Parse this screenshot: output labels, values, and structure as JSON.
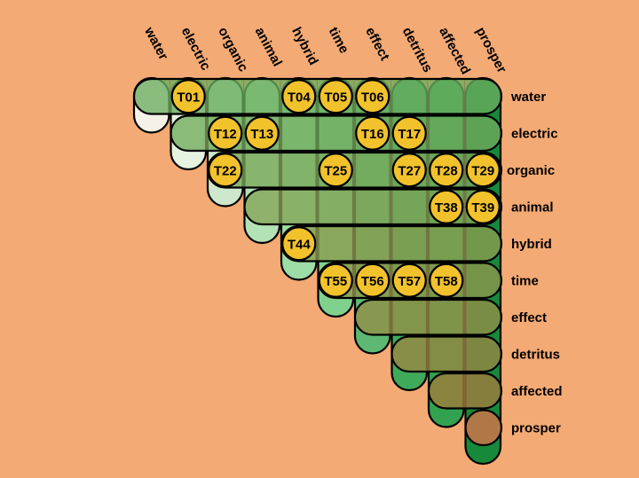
{
  "background": "#f4aa74",
  "column_labels": [
    "water",
    "electric",
    "organic",
    "animal",
    "hybrid",
    "time",
    "effect",
    "detritus",
    "affected",
    "prosper"
  ],
  "row_labels": [
    "water",
    "electric",
    "organic",
    "animal",
    "hybrid",
    "time",
    "effect",
    "detritus",
    "affected",
    "prosper"
  ],
  "column_colors": [
    "#f6f1e8",
    "#e5f3e0",
    "#cde8cc",
    "#b3e2b7",
    "#9bdda4",
    "#80d18e",
    "#5db873",
    "#3faa5a",
    "#32a250",
    "#17893b"
  ],
  "row_colors": [
    "#6aad5f",
    "#71ab5c",
    "#7aa85a",
    "#84a457",
    "#8c9c4f",
    "#91974c",
    "#958f47",
    "#9a8743",
    "#a47b3e",
    "#b07846"
  ],
  "tokens": [
    {
      "label": "T01",
      "row": 0,
      "col": 1
    },
    {
      "label": "T04",
      "row": 0,
      "col": 4
    },
    {
      "label": "T05",
      "row": 0,
      "col": 5
    },
    {
      "label": "T06",
      "row": 0,
      "col": 6
    },
    {
      "label": "T12",
      "row": 1,
      "col": 2
    },
    {
      "label": "T13",
      "row": 1,
      "col": 3
    },
    {
      "label": "T16",
      "row": 1,
      "col": 6
    },
    {
      "label": "T17",
      "row": 1,
      "col": 7
    },
    {
      "label": "T22",
      "row": 2,
      "col": 2
    },
    {
      "label": "T25",
      "row": 2,
      "col": 5
    },
    {
      "label": "T27",
      "row": 2,
      "col": 7
    },
    {
      "label": "T28",
      "row": 2,
      "col": 8
    },
    {
      "label": "T29",
      "row": 2,
      "col": 9
    },
    {
      "label": "T38",
      "row": 3,
      "col": 8
    },
    {
      "label": "T39",
      "row": 3,
      "col": 9
    },
    {
      "label": "T44",
      "row": 4,
      "col": 4
    },
    {
      "label": "T55",
      "row": 5,
      "col": 5
    },
    {
      "label": "T56",
      "row": 5,
      "col": 6
    },
    {
      "label": "T57",
      "row": 5,
      "col": 7
    },
    {
      "label": "T58",
      "row": 5,
      "col": 8
    }
  ],
  "token_color": "#f2c22c"
}
